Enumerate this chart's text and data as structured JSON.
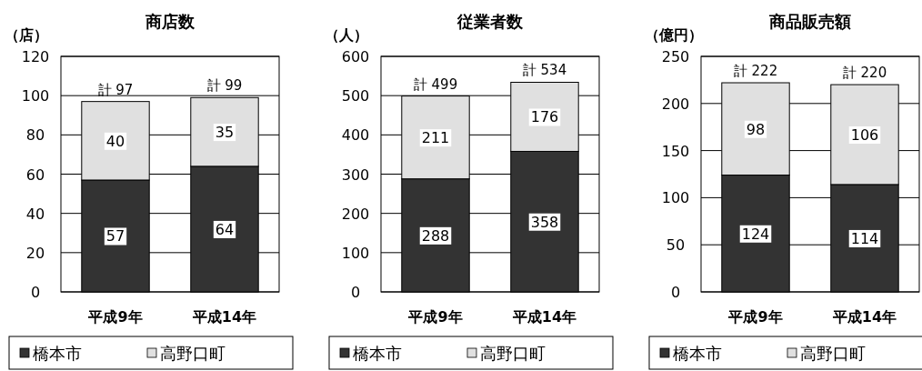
{
  "chart_data": [
    {
      "type": "bar",
      "title": "商店数",
      "ylabel": "（店）",
      "categories": [
        "平成9年",
        "平成14年"
      ],
      "stacked": true,
      "series": [
        {
          "name": "橋本市",
          "color": "#333333",
          "values": [
            57,
            64
          ]
        },
        {
          "name": "高野口町",
          "color": "#e0e0e0",
          "values": [
            40,
            35
          ]
        }
      ],
      "ylim": [
        0,
        120
      ],
      "yticks": [
        0,
        20,
        40,
        60,
        80,
        100,
        120
      ],
      "grid": "y",
      "legend": "bottom",
      "data_labels": true,
      "totals": [
        "計 97",
        "計 99"
      ]
    },
    {
      "type": "bar",
      "title": "従業者数",
      "ylabel": "（人）",
      "categories": [
        "平成9年",
        "平成14年"
      ],
      "stacked": true,
      "series": [
        {
          "name": "橋本市",
          "color": "#333333",
          "values": [
            288,
            358
          ]
        },
        {
          "name": "高野口町",
          "color": "#e0e0e0",
          "values": [
            211,
            176
          ]
        }
      ],
      "ylim": [
        0,
        600
      ],
      "yticks": [
        0,
        100,
        200,
        300,
        400,
        500,
        600
      ],
      "grid": "y",
      "legend": "bottom",
      "data_labels": true,
      "totals": [
        "計 499",
        "計 534"
      ]
    },
    {
      "type": "bar",
      "title": "商品販売額",
      "ylabel": "（億円）",
      "categories": [
        "平成9年",
        "平成14年"
      ],
      "stacked": true,
      "series": [
        {
          "name": "橋本市",
          "color": "#333333",
          "values": [
            124,
            114
          ]
        },
        {
          "name": "高野口町",
          "color": "#e0e0e0",
          "values": [
            98,
            106
          ]
        }
      ],
      "ylim": [
        0,
        250
      ],
      "yticks": [
        0,
        50,
        100,
        150,
        200,
        250
      ],
      "grid": "y",
      "legend": "bottom",
      "data_labels": true,
      "totals": [
        "計 222",
        "計 220"
      ]
    }
  ]
}
